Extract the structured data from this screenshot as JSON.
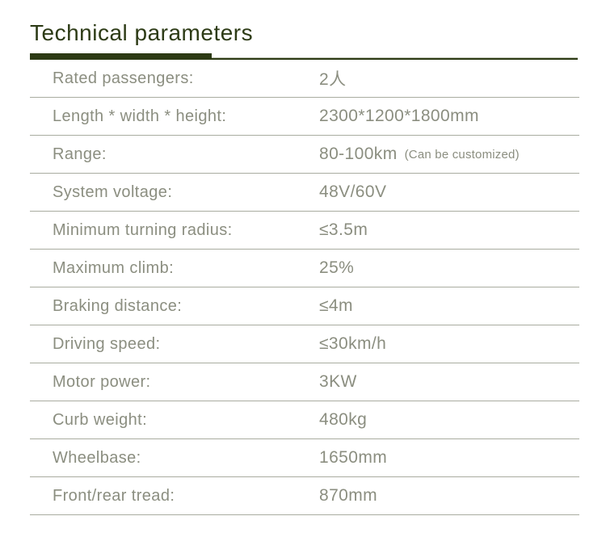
{
  "page": {
    "title": "Technical parameters"
  },
  "theme": {
    "accent_dark_green": "#2c3a14",
    "title_color": "#2d3b16",
    "text_color": "#8b8e80",
    "separator_color": "#a9aca0",
    "background": "#ffffff"
  },
  "table": {
    "rows": [
      {
        "label": "Rated passengers:",
        "value": "2人"
      },
      {
        "label": "Length * width * height:",
        "value": "2300*1200*1800mm"
      },
      {
        "label": "Range:",
        "value": "80-100km",
        "note": "(Can be customized)"
      },
      {
        "label": "System voltage:",
        "value": "48V/60V"
      },
      {
        "label": "Minimum turning radius:",
        "value": "≤3.5m"
      },
      {
        "label": "Maximum climb:",
        "value": "25%"
      },
      {
        "label": "Braking distance:",
        "value": "≤4m"
      },
      {
        "label": "Driving speed:",
        "value": "≤30km/h"
      },
      {
        "label": "Motor power:",
        "value": "3KW"
      },
      {
        "label": "Curb weight:",
        "value": "480kg"
      },
      {
        "label": "Wheelbase:",
        "value": "1650mm"
      },
      {
        "label": "Front/rear tread:",
        "value": "870mm"
      }
    ]
  }
}
